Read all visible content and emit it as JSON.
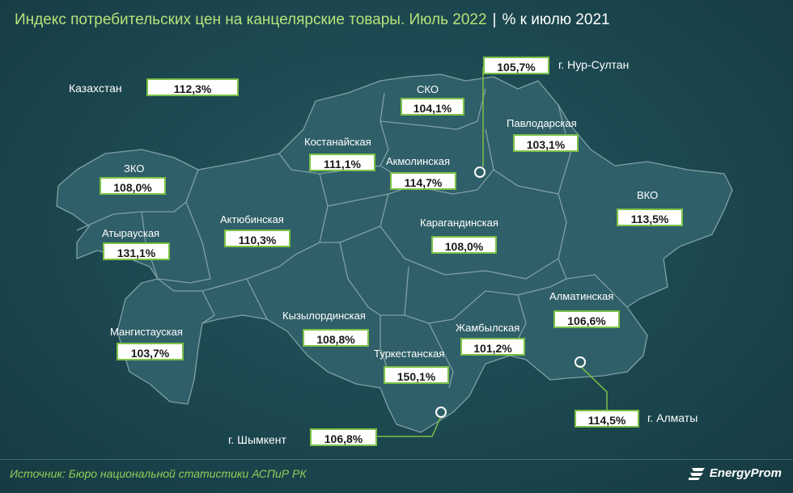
{
  "header": {
    "title": "Индекс потребительских цен на канцелярские товары. Июль 2022",
    "separator": "|",
    "unit": "% к июлю 2021"
  },
  "country": {
    "label": "Казахстан",
    "value": "112,3%"
  },
  "regions": {
    "zko": {
      "name": "ЗКО",
      "value": "108,0%"
    },
    "atyrau": {
      "name": "Атырауская",
      "value": "131,1%"
    },
    "mangistau": {
      "name": "Мангистауская",
      "value": "103,7%"
    },
    "aktobe": {
      "name": "Актюбинская",
      "value": "110,3%"
    },
    "kostanay": {
      "name": "Костанайская",
      "value": "111,1%"
    },
    "sko": {
      "name": "СКО",
      "value": "104,1%"
    },
    "akmola": {
      "name": "Акмолинская",
      "value": "114,7%"
    },
    "pavlodar": {
      "name": "Павлодарская",
      "value": "103,1%"
    },
    "vko": {
      "name": "ВКО",
      "value": "113,5%"
    },
    "karaganda": {
      "name": "Карагандинская",
      "value": "108,0%"
    },
    "kyzylorda": {
      "name": "Кызылординская",
      "value": "108,8%"
    },
    "turkestan": {
      "name": "Туркестанская",
      "value": "150,1%"
    },
    "zhambyl": {
      "name": "Жамбылская",
      "value": "101,2%"
    },
    "almaty_reg": {
      "name": "Алматинская",
      "value": "106,6%"
    }
  },
  "cities": {
    "nursultan": {
      "name": "г. Нур-Султан",
      "value": "105,7%"
    },
    "almaty": {
      "name": "г. Алматы",
      "value": "114,5%"
    },
    "shymkent": {
      "name": "г. Шымкент",
      "value": "106,8%"
    }
  },
  "footer": {
    "source": "Источник: Бюро национальной статистики АСПиР РК"
  },
  "logo": {
    "text": "EnergyProm"
  },
  "colors": {
    "accent": "#7cc047",
    "title": "#b7e27a",
    "background": "#1d4a52"
  }
}
